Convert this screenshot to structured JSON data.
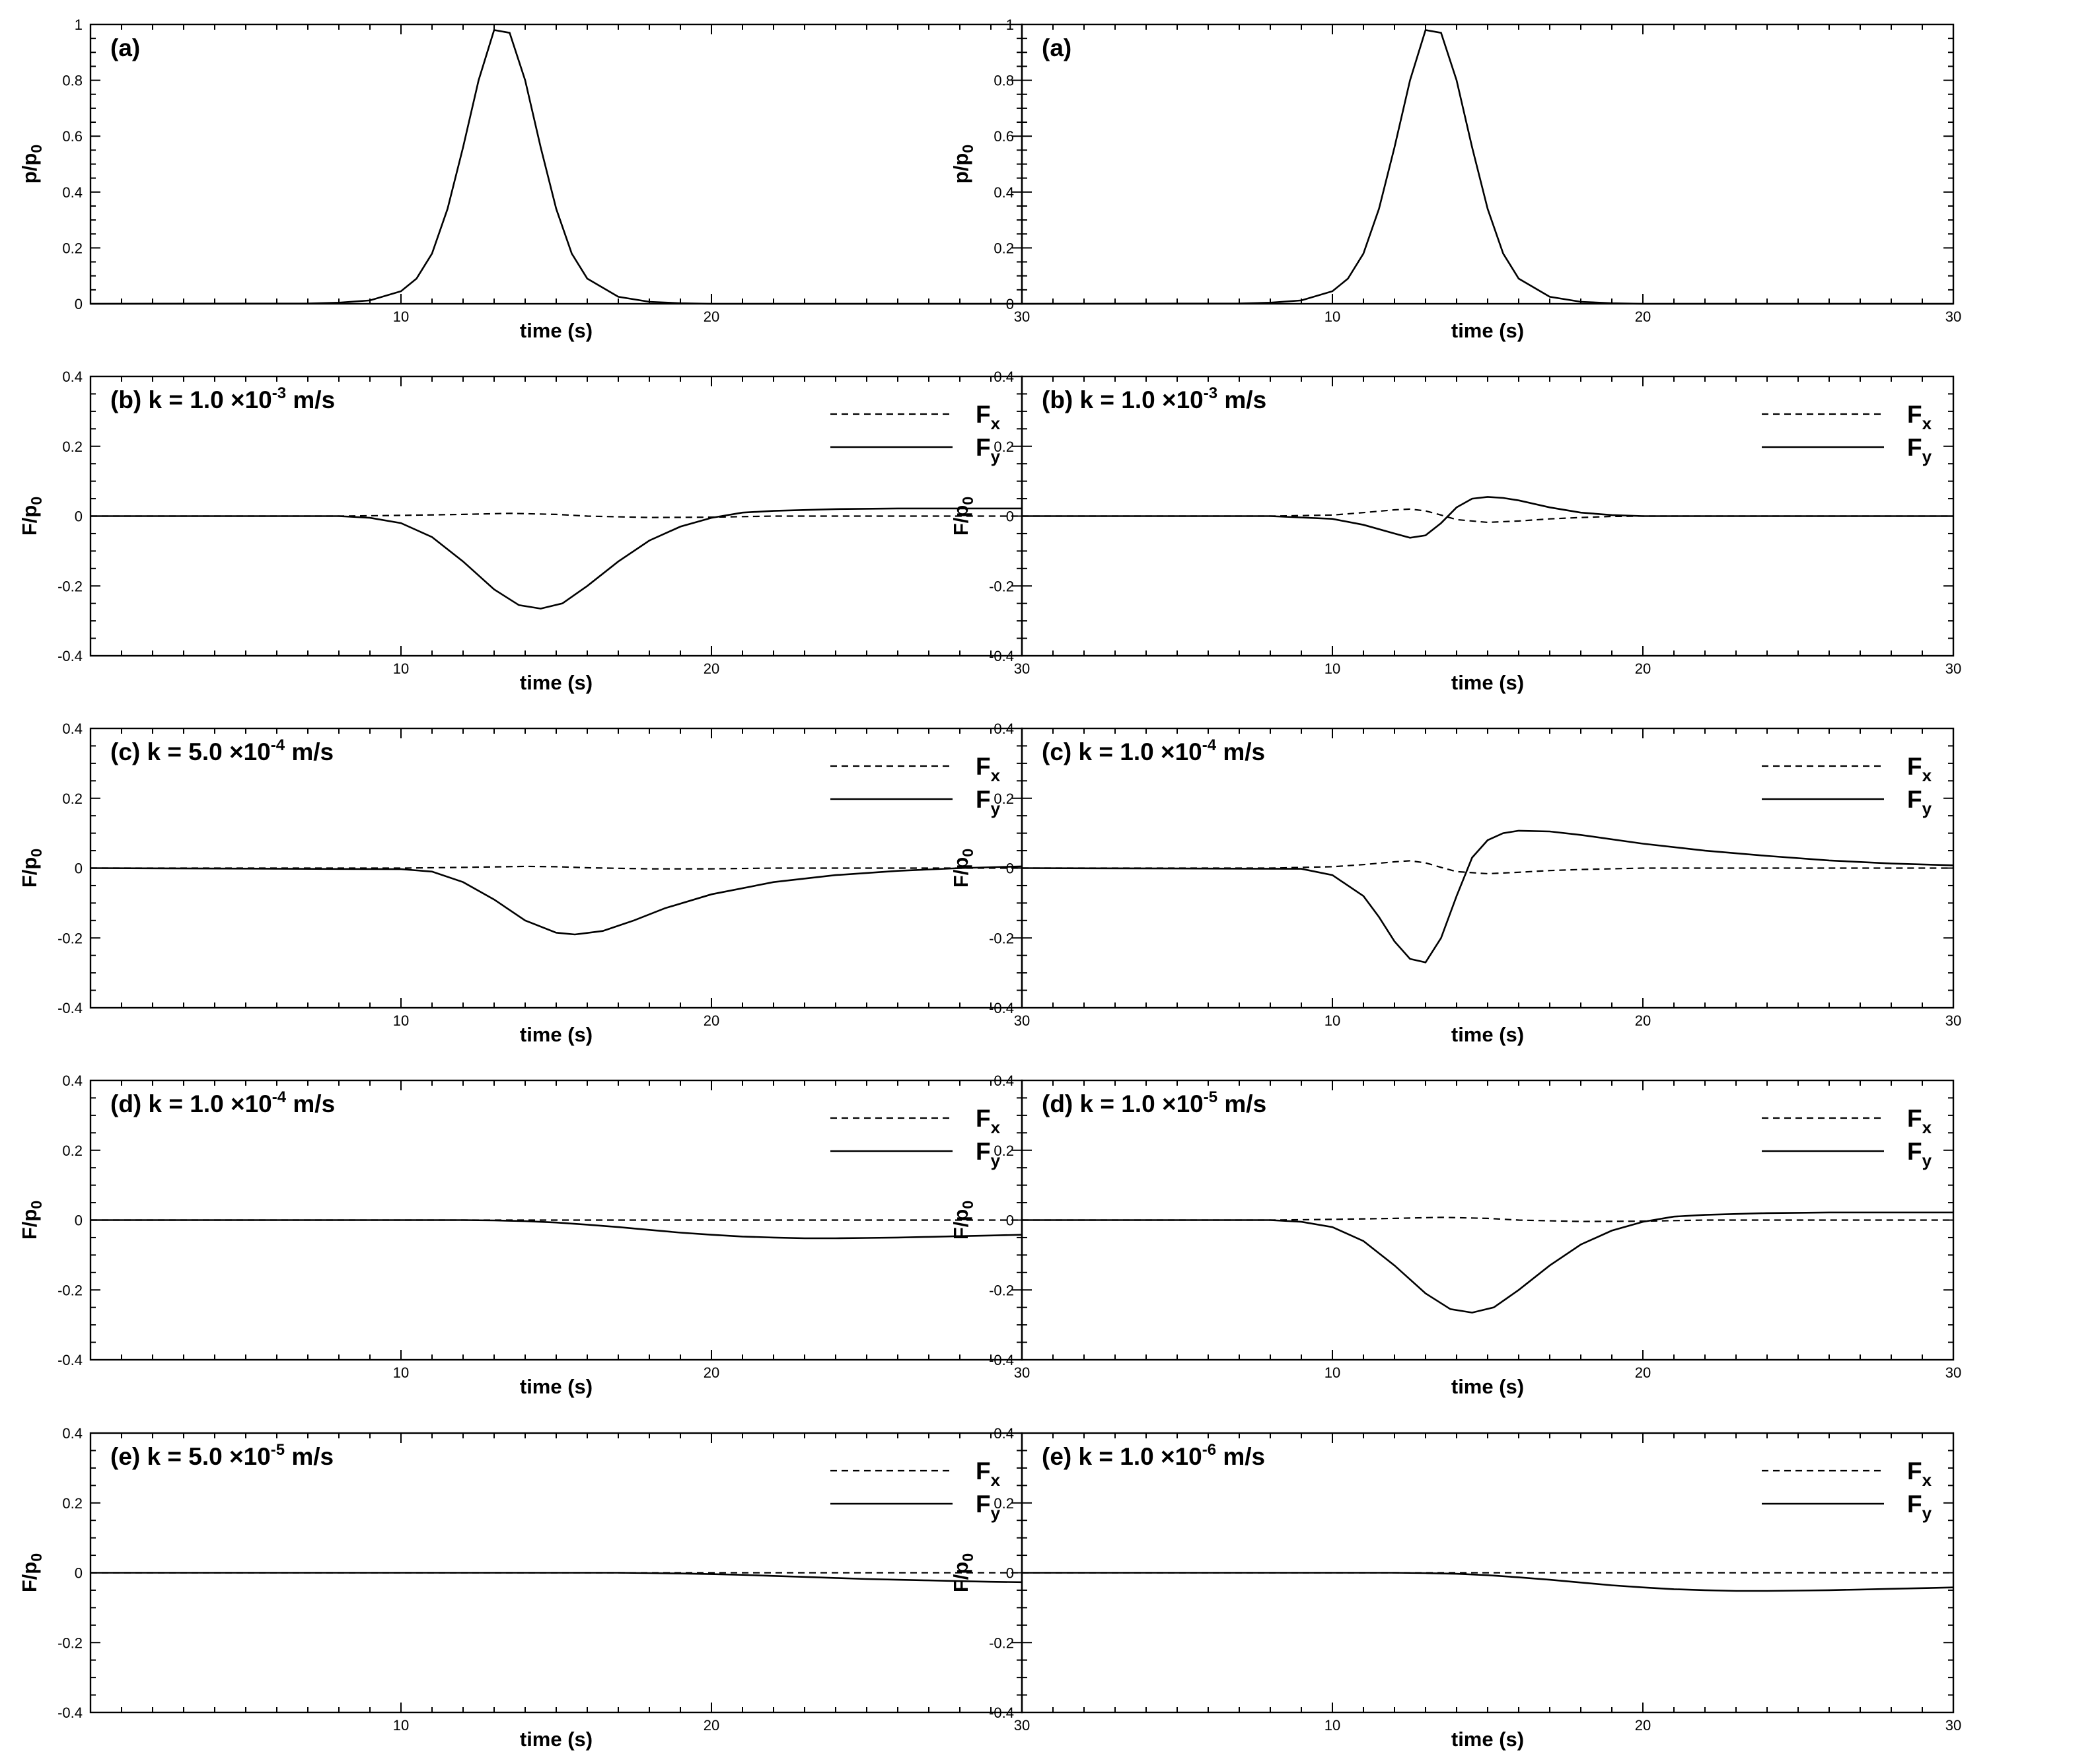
{
  "chart_data": [
    {
      "type": "line",
      "title": "",
      "panel_label": "(a)",
      "k_value": "",
      "k_exponent": "",
      "k_unit": "",
      "xlabel": "time (s)",
      "ylabel": "p/p",
      "ylabel_sub": "0",
      "xlim": [
        0,
        30
      ],
      "ylim": [
        0,
        1
      ],
      "xticks": [
        10,
        20,
        30
      ],
      "yticks": [
        0,
        0.2,
        0.4,
        0.6,
        0.8,
        1
      ],
      "ytick_labels": [
        "0",
        "0.2",
        "0.4",
        "0.6",
        "0.8",
        "1"
      ],
      "legend": [],
      "series": [
        {
          "style": "solid",
          "x": [
            0,
            7,
            8,
            9,
            10,
            10.5,
            11,
            11.5,
            12,
            12.5,
            13,
            13.5,
            14,
            14.5,
            15,
            15.5,
            16,
            17,
            18,
            19,
            20,
            30
          ],
          "y": [
            0,
            0.001,
            0.004,
            0.012,
            0.045,
            0.09,
            0.18,
            0.34,
            0.56,
            0.8,
            0.98,
            0.97,
            0.8,
            0.56,
            0.34,
            0.18,
            0.09,
            0.025,
            0.007,
            0.002,
            0,
            0
          ]
        }
      ]
    },
    {
      "type": "line",
      "title": "",
      "panel_label": "(a)",
      "k_value": "",
      "k_exponent": "",
      "k_unit": "",
      "xlabel": "time (s)",
      "ylabel": "p/p",
      "ylabel_sub": "0",
      "xlim": [
        0,
        30
      ],
      "ylim": [
        0,
        1
      ],
      "xticks": [
        10,
        20,
        30
      ],
      "yticks": [
        0,
        0.2,
        0.4,
        0.6,
        0.8,
        1
      ],
      "ytick_labels": [
        "0",
        "0.2",
        "0.4",
        "0.6",
        "0.8",
        "1"
      ],
      "legend": [],
      "series": [
        {
          "style": "solid",
          "x": [
            0,
            7,
            8,
            9,
            10,
            10.5,
            11,
            11.5,
            12,
            12.5,
            13,
            13.5,
            14,
            14.5,
            15,
            15.5,
            16,
            17,
            18,
            19,
            20,
            30
          ],
          "y": [
            0,
            0.001,
            0.004,
            0.012,
            0.045,
            0.09,
            0.18,
            0.34,
            0.56,
            0.8,
            0.98,
            0.97,
            0.8,
            0.56,
            0.34,
            0.18,
            0.09,
            0.025,
            0.007,
            0.002,
            0,
            0
          ]
        }
      ]
    },
    {
      "type": "line",
      "title": "",
      "panel_label": "(b)",
      "k_value": "k = 1.0 ×10",
      "k_exponent": "-3",
      "k_unit": " m/s",
      "xlabel": "time (s)",
      "ylabel": "F/p",
      "ylabel_sub": "0",
      "xlim": [
        0,
        30
      ],
      "ylim": [
        -0.4,
        0.4
      ],
      "xticks": [
        10,
        20,
        30
      ],
      "yticks": [
        -0.4,
        -0.2,
        0,
        0.2,
        0.4
      ],
      "ytick_labels": [
        "-0.4",
        "-0.2",
        "0",
        "0.2",
        "0.4"
      ],
      "legend": [
        {
          "name": "F",
          "sub": "x",
          "style": "dashed"
        },
        {
          "name": "F",
          "sub": "y",
          "style": "solid"
        }
      ],
      "series": [
        {
          "name": "Fx",
          "style": "dashed",
          "x": [
            0,
            8,
            10,
            12,
            13.5,
            15,
            16,
            18,
            20,
            22,
            30
          ],
          "y": [
            0,
            0,
            0.002,
            0.005,
            0.008,
            0.005,
            0,
            -0.004,
            -0.003,
            0,
            0
          ]
        },
        {
          "name": "Fy",
          "style": "solid",
          "x": [
            0,
            8,
            9,
            10,
            11,
            12,
            13,
            13.8,
            14.5,
            15.2,
            16,
            17,
            18,
            19,
            20,
            21,
            22,
            24,
            26,
            30
          ],
          "y": [
            0,
            0,
            -0.005,
            -0.02,
            -0.06,
            -0.13,
            -0.21,
            -0.255,
            -0.265,
            -0.25,
            -0.2,
            -0.13,
            -0.07,
            -0.03,
            -0.005,
            0.01,
            0.015,
            0.02,
            0.022,
            0.022
          ]
        }
      ]
    },
    {
      "type": "line",
      "title": "",
      "panel_label": "(b)",
      "k_value": "k = 1.0 ×10",
      "k_exponent": "-3",
      "k_unit": " m/s",
      "xlabel": "time (s)",
      "ylabel": "F/p",
      "ylabel_sub": "0",
      "xlim": [
        0,
        30
      ],
      "ylim": [
        -0.4,
        0.4
      ],
      "xticks": [
        10,
        20,
        30
      ],
      "yticks": [
        -0.4,
        -0.2,
        0,
        0.2,
        0.4
      ],
      "ytick_labels": [
        "-0.4",
        "-0.2",
        "0",
        "0.2",
        "0.4"
      ],
      "legend": [
        {
          "name": "F",
          "sub": "x",
          "style": "dashed"
        },
        {
          "name": "F",
          "sub": "y",
          "style": "solid"
        }
      ],
      "series": [
        {
          "name": "Fx",
          "style": "dashed",
          "x": [
            0,
            8,
            10,
            11,
            12,
            12.5,
            13,
            13.5,
            14,
            15,
            16,
            17,
            18,
            19,
            20,
            30
          ],
          "y": [
            0,
            0,
            0.003,
            0.01,
            0.018,
            0.02,
            0.015,
            0.003,
            -0.01,
            -0.018,
            -0.014,
            -0.008,
            -0.004,
            -0.001,
            0,
            0
          ]
        },
        {
          "name": "Fy",
          "style": "solid",
          "x": [
            0,
            8,
            10,
            11,
            12,
            12.5,
            13,
            13.5,
            14,
            14.5,
            15,
            15.5,
            16,
            17,
            18,
            19,
            20,
            30
          ],
          "y": [
            0,
            0,
            -0.008,
            -0.025,
            -0.05,
            -0.062,
            -0.055,
            -0.02,
            0.025,
            0.05,
            0.055,
            0.052,
            0.045,
            0.025,
            0.01,
            0.003,
            0,
            0
          ]
        }
      ]
    },
    {
      "type": "line",
      "title": "",
      "panel_label": "(c)",
      "k_value": "k = 5.0 ×10",
      "k_exponent": "-4",
      "k_unit": " m/s",
      "xlabel": "time (s)",
      "ylabel": "F/p",
      "ylabel_sub": "0",
      "xlim": [
        0,
        30
      ],
      "ylim": [
        -0.4,
        0.4
      ],
      "xticks": [
        10,
        20,
        30
      ],
      "yticks": [
        -0.4,
        -0.2,
        0,
        0.2,
        0.4
      ],
      "ytick_labels": [
        "-0.4",
        "-0.2",
        "0",
        "0.2",
        "0.4"
      ],
      "legend": [
        {
          "name": "F",
          "sub": "x",
          "style": "dashed"
        },
        {
          "name": "F",
          "sub": "y",
          "style": "solid"
        }
      ],
      "series": [
        {
          "name": "Fx",
          "style": "dashed",
          "x": [
            0,
            10,
            12,
            14,
            15,
            16,
            18,
            20,
            22,
            30
          ],
          "y": [
            0,
            0,
            0.002,
            0.005,
            0.004,
            0.001,
            -0.002,
            -0.002,
            0,
            0
          ]
        },
        {
          "name": "Fy",
          "style": "solid",
          "x": [
            0,
            10,
            11,
            12,
            13,
            14,
            15,
            15.6,
            16.5,
            17.5,
            18.5,
            20,
            22,
            24,
            26,
            28,
            30
          ],
          "y": [
            0,
            -0.003,
            -0.01,
            -0.04,
            -0.09,
            -0.15,
            -0.185,
            -0.19,
            -0.18,
            -0.15,
            -0.115,
            -0.075,
            -0.04,
            -0.02,
            -0.008,
            0,
            0.005
          ]
        }
      ]
    },
    {
      "type": "line",
      "title": "",
      "panel_label": "(c)",
      "k_value": "k = 1.0 ×10",
      "k_exponent": "-4",
      "k_unit": " m/s",
      "xlabel": "time (s)",
      "ylabel": "F/p",
      "ylabel_sub": "0",
      "xlim": [
        0,
        30
      ],
      "ylim": [
        -0.4,
        0.4
      ],
      "xticks": [
        10,
        20,
        30
      ],
      "yticks": [
        -0.4,
        -0.2,
        0,
        0.2,
        0.4
      ],
      "ytick_labels": [
        "-0.4",
        "-0.2",
        "0",
        "0.2",
        "0.4"
      ],
      "legend": [
        {
          "name": "F",
          "sub": "x",
          "style": "dashed"
        },
        {
          "name": "F",
          "sub": "y",
          "style": "solid"
        }
      ],
      "series": [
        {
          "name": "Fx",
          "style": "dashed",
          "x": [
            0,
            8,
            10,
            11,
            12,
            12.5,
            13,
            13.5,
            14,
            15,
            16,
            17,
            18,
            20,
            30
          ],
          "y": [
            0,
            0,
            0.004,
            0.01,
            0.018,
            0.021,
            0.015,
            0.002,
            -0.01,
            -0.016,
            -0.012,
            -0.007,
            -0.004,
            0,
            0
          ]
        },
        {
          "name": "Fy",
          "style": "solid",
          "x": [
            0,
            9,
            10,
            11,
            11.5,
            12,
            12.5,
            13,
            13.5,
            14,
            14.5,
            15,
            15.5,
            16,
            17,
            18,
            20,
            22,
            24,
            26,
            28,
            30
          ],
          "y": [
            0,
            -0.002,
            -0.02,
            -0.08,
            -0.14,
            -0.21,
            -0.26,
            -0.27,
            -0.2,
            -0.08,
            0.03,
            0.08,
            0.1,
            0.107,
            0.105,
            0.095,
            0.07,
            0.05,
            0.035,
            0.022,
            0.013,
            0.008
          ]
        }
      ]
    },
    {
      "type": "line",
      "title": "",
      "panel_label": "(d)",
      "k_value": "k = 1.0 ×10",
      "k_exponent": "-4",
      "k_unit": " m/s",
      "xlabel": "time (s)",
      "ylabel": "F/p",
      "ylabel_sub": "0",
      "xlim": [
        0,
        30
      ],
      "ylim": [
        -0.4,
        0.4
      ],
      "xticks": [
        10,
        20,
        30
      ],
      "yticks": [
        -0.4,
        -0.2,
        0,
        0.2,
        0.4
      ],
      "ytick_labels": [
        "-0.4",
        "-0.2",
        "0",
        "0.2",
        "0.4"
      ],
      "legend": [
        {
          "name": "F",
          "sub": "x",
          "style": "dashed"
        },
        {
          "name": "F",
          "sub": "y",
          "style": "solid"
        }
      ],
      "series": [
        {
          "name": "Fx",
          "style": "dashed",
          "x": [
            0,
            30
          ],
          "y": [
            0,
            0
          ]
        },
        {
          "name": "Fy",
          "style": "solid",
          "x": [
            0,
            12,
            13,
            14,
            15,
            16,
            17,
            18,
            19,
            20,
            21,
            22,
            23,
            24,
            25,
            26,
            27,
            28,
            29,
            30
          ],
          "y": [
            0,
            0,
            -0.001,
            -0.003,
            -0.007,
            -0.013,
            -0.02,
            -0.028,
            -0.036,
            -0.042,
            -0.047,
            -0.05,
            -0.052,
            -0.052,
            -0.051,
            -0.05,
            -0.048,
            -0.046,
            -0.044,
            -0.042
          ]
        }
      ]
    },
    {
      "type": "line",
      "title": "",
      "panel_label": "(d)",
      "k_value": "k = 1.0 ×10",
      "k_exponent": "-5",
      "k_unit": " m/s",
      "xlabel": "time (s)",
      "ylabel": "F/p",
      "ylabel_sub": "0",
      "xlim": [
        0,
        30
      ],
      "ylim": [
        -0.4,
        0.4
      ],
      "xticks": [
        10,
        20,
        30
      ],
      "yticks": [
        -0.4,
        -0.2,
        0,
        0.2,
        0.4
      ],
      "ytick_labels": [
        "-0.4",
        "-0.2",
        "0",
        "0.2",
        "0.4"
      ],
      "legend": [
        {
          "name": "F",
          "sub": "x",
          "style": "dashed"
        },
        {
          "name": "F",
          "sub": "y",
          "style": "solid"
        }
      ],
      "series": [
        {
          "name": "Fx",
          "style": "dashed",
          "x": [
            0,
            8,
            10,
            12,
            13.5,
            15,
            16,
            18,
            20,
            22,
            30
          ],
          "y": [
            0,
            0,
            0.002,
            0.005,
            0.008,
            0.005,
            0,
            -0.004,
            -0.003,
            0,
            0
          ]
        },
        {
          "name": "Fy",
          "style": "solid",
          "x": [
            0,
            8,
            9,
            10,
            11,
            12,
            13,
            13.8,
            14.5,
            15.2,
            16,
            17,
            18,
            19,
            20,
            21,
            22,
            24,
            26,
            30
          ],
          "y": [
            0,
            0,
            -0.005,
            -0.02,
            -0.06,
            -0.13,
            -0.21,
            -0.255,
            -0.265,
            -0.25,
            -0.2,
            -0.13,
            -0.07,
            -0.03,
            -0.005,
            0.01,
            0.015,
            0.02,
            0.022,
            0.022
          ]
        }
      ]
    },
    {
      "type": "line",
      "title": "",
      "panel_label": "(e)",
      "k_value": "k = 5.0 ×10",
      "k_exponent": "-5",
      "k_unit": " m/s",
      "xlabel": "time (s)",
      "ylabel": "F/p",
      "ylabel_sub": "0",
      "xlim": [
        0,
        30
      ],
      "ylim": [
        -0.4,
        0.4
      ],
      "xticks": [
        10,
        20,
        30
      ],
      "yticks": [
        -0.4,
        -0.2,
        0,
        0.2,
        0.4
      ],
      "ytick_labels": [
        "-0.4",
        "-0.2",
        "0",
        "0.2",
        "0.4"
      ],
      "legend": [
        {
          "name": "F",
          "sub": "x",
          "style": "dashed"
        },
        {
          "name": "F",
          "sub": "y",
          "style": "solid"
        }
      ],
      "series": [
        {
          "name": "Fx",
          "style": "dashed",
          "x": [
            0,
            30
          ],
          "y": [
            0,
            0
          ]
        },
        {
          "name": "Fy",
          "style": "solid",
          "x": [
            0,
            17,
            18,
            19,
            20,
            21,
            22,
            23,
            24,
            25,
            26,
            27,
            28,
            29,
            30
          ],
          "y": [
            0,
            0,
            -0.001,
            -0.002,
            -0.004,
            -0.006,
            -0.009,
            -0.012,
            -0.015,
            -0.018,
            -0.02,
            -0.022,
            -0.024,
            -0.026,
            -0.027
          ]
        }
      ]
    },
    {
      "type": "line",
      "title": "",
      "panel_label": "(e)",
      "k_value": "k = 1.0 ×10",
      "k_exponent": "-6",
      "k_unit": " m/s",
      "xlabel": "time (s)",
      "ylabel": "F/p",
      "ylabel_sub": "0",
      "xlim": [
        0,
        30
      ],
      "ylim": [
        -0.4,
        0.4
      ],
      "xticks": [
        10,
        20,
        30
      ],
      "yticks": [
        -0.4,
        -0.2,
        0,
        0.2,
        0.4
      ],
      "ytick_labels": [
        "-0.4",
        "-0.2",
        "0",
        "0.2",
        "0.4"
      ],
      "legend": [
        {
          "name": "F",
          "sub": "x",
          "style": "dashed"
        },
        {
          "name": "F",
          "sub": "y",
          "style": "solid"
        }
      ],
      "series": [
        {
          "name": "Fx",
          "style": "dashed",
          "x": [
            0,
            30
          ],
          "y": [
            0,
            0
          ]
        },
        {
          "name": "Fy",
          "style": "solid",
          "x": [
            0,
            12,
            13,
            14,
            15,
            16,
            17,
            18,
            19,
            20,
            21,
            22,
            23,
            24,
            25,
            26,
            27,
            28,
            29,
            30
          ],
          "y": [
            0,
            0,
            -0.001,
            -0.003,
            -0.007,
            -0.013,
            -0.02,
            -0.028,
            -0.036,
            -0.042,
            -0.047,
            -0.05,
            -0.052,
            -0.052,
            -0.051,
            -0.05,
            -0.048,
            -0.046,
            -0.044,
            -0.042
          ]
        }
      ]
    }
  ]
}
